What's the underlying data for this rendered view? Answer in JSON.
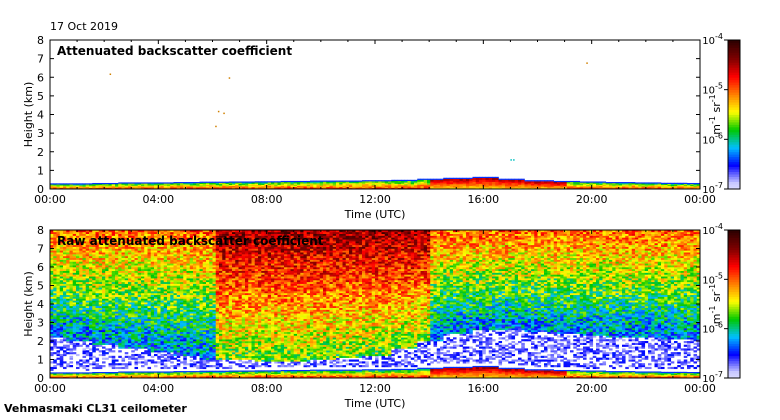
{
  "date": "17 Oct 2019",
  "footer": "Vehmasmaki CL31 ceilometer",
  "colormap": [
    "#ffffff",
    "#c8c8ff",
    "#0000ff",
    "#00c0ff",
    "#00c800",
    "#ffff00",
    "#ff8000",
    "#ff0000",
    "#800000",
    "#300000"
  ],
  "chart_data": [
    {
      "type": "heatmap",
      "title": "Attenuated backscatter coefficient",
      "xlabel": "Time (UTC)",
      "ylabel": "Height (km)",
      "xlim": [
        0,
        24
      ],
      "ylim": [
        0,
        8
      ],
      "x_ticks": [
        "00:00",
        "04:00",
        "08:00",
        "12:00",
        "16:00",
        "20:00",
        "00:00"
      ],
      "y_ticks": [
        "0",
        "1",
        "2",
        "3",
        "4",
        "5",
        "6",
        "7",
        "8"
      ],
      "colorbar": {
        "scale": "log",
        "range": [
          1e-07,
          0.0001
        ],
        "tick_labels": [
          {
            "base": "10",
            "exp": "-7"
          },
          {
            "base": "10",
            "exp": "-6"
          },
          {
            "base": "10",
            "exp": "-5"
          },
          {
            "base": "10",
            "exp": "-4"
          }
        ],
        "unit": {
          "m": "m",
          "m_exp": "-1",
          "sr": "sr",
          "sr_exp": "-1"
        }
      },
      "features": {
        "boundary_layer_top_km": [
          0.25,
          0.25,
          0.27,
          0.3,
          0.3,
          0.32,
          0.34,
          0.35,
          0.36,
          0.38,
          0.4,
          0.4,
          0.42,
          0.44,
          0.5,
          0.55,
          0.6,
          0.5,
          0.42,
          0.38,
          0.35,
          0.32,
          0.3,
          0.28,
          0.27
        ],
        "upper_noise": "sparse",
        "noise_level": 0.01
      }
    },
    {
      "type": "heatmap",
      "title": "Raw attenuated backscatter coefficient",
      "xlabel": "Time (UTC)",
      "ylabel": "Height (km)",
      "xlim": [
        0,
        24
      ],
      "ylim": [
        0,
        8
      ],
      "x_ticks": [
        "00:00",
        "04:00",
        "08:00",
        "12:00",
        "16:00",
        "20:00",
        "00:00"
      ],
      "y_ticks": [
        "0",
        "1",
        "2",
        "3",
        "4",
        "5",
        "6",
        "7",
        "8"
      ],
      "colorbar": {
        "scale": "log",
        "range": [
          1e-07,
          0.0001
        ],
        "tick_labels": [
          {
            "base": "10",
            "exp": "-7"
          },
          {
            "base": "10",
            "exp": "-6"
          },
          {
            "base": "10",
            "exp": "-5"
          },
          {
            "base": "10",
            "exp": "-4"
          }
        ],
        "unit": {
          "m": "m",
          "m_exp": "-1",
          "sr": "sr",
          "sr_exp": "-1"
        }
      },
      "features": {
        "boundary_layer_top_km": [
          0.25,
          0.25,
          0.27,
          0.3,
          0.3,
          0.32,
          0.34,
          0.35,
          0.36,
          0.38,
          0.4,
          0.4,
          0.42,
          0.44,
          0.5,
          0.55,
          0.6,
          0.5,
          0.42,
          0.38,
          0.35,
          0.32,
          0.3,
          0.28,
          0.27
        ],
        "upper_noise": "dense",
        "noise_floor_km": [
          2.2,
          2.0,
          1.8,
          1.6,
          1.4,
          1.2,
          1.0,
          1.0,
          0.9,
          0.9,
          1.0,
          1.1,
          1.2,
          1.6,
          2.0,
          2.4,
          2.6,
          2.6,
          2.5,
          2.4,
          2.3,
          2.2,
          2.2,
          2.1,
          2.1
        ],
        "noise_level": 1
      }
    }
  ]
}
